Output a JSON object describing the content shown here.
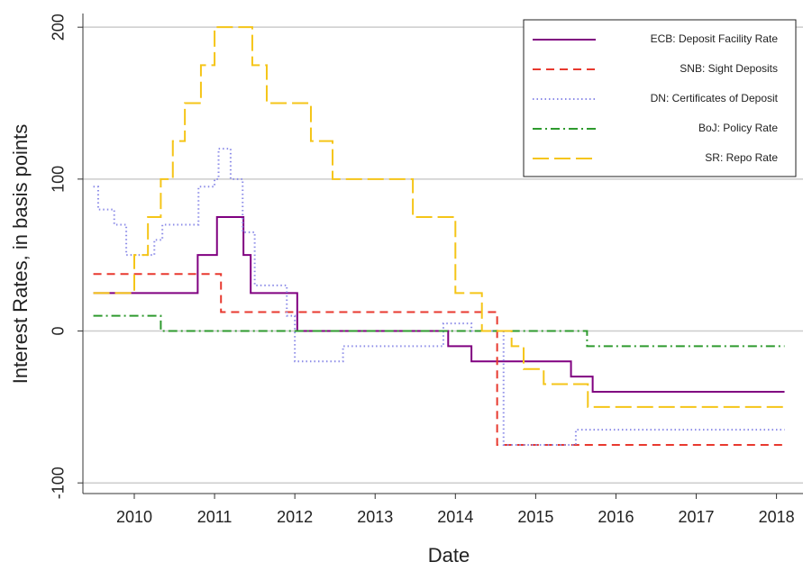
{
  "chart_data": {
    "type": "step",
    "x_label": "Date",
    "y_label": "Interest Rates, in basis points",
    "xlim": [
      2009.36,
      2018.33
    ],
    "xticks": [
      2010,
      2011,
      2012,
      2013,
      2014,
      2015,
      2016,
      2017,
      2018
    ],
    "ylim": [
      -107,
      209
    ],
    "yticks": [
      -100,
      0,
      100,
      200
    ],
    "grid": true,
    "legend": "upper right",
    "series": [
      {
        "name": "ECB: Deposit Facility Rate",
        "color": "#800080",
        "dash": "",
        "x": [
          2009.49,
          2010.79,
          2011.03,
          2011.36,
          2011.45,
          2012.03,
          2013.91,
          2014.2,
          2015.44,
          2015.71,
          2018.1
        ],
        "values": [
          25,
          50,
          75,
          50,
          25,
          0,
          -10,
          -20,
          -30,
          -40,
          -40
        ]
      },
      {
        "name": "SNB: Sight Deposits",
        "color": "#e8392f",
        "dash": "9,6",
        "x": [
          2009.49,
          2011.08,
          2014.52,
          2018.1
        ],
        "values": [
          37.5,
          12.5,
          -75,
          -75
        ]
      },
      {
        "name": "DN: Certificates of Deposit",
        "color": "#8c8ce8",
        "dash": "1.5,3",
        "x": [
          2009.49,
          2009.55,
          2009.75,
          2009.9,
          2010.25,
          2010.35,
          2010.8,
          2011.0,
          2011.05,
          2011.2,
          2011.35,
          2011.5,
          2011.9,
          2012.0,
          2012.6,
          2013.85,
          2014.2,
          2014.6,
          2015.5,
          2018.1
        ],
        "values": [
          95,
          80,
          70,
          50,
          60,
          70,
          95,
          100,
          120,
          100,
          65,
          30,
          10,
          -20,
          -10,
          5,
          0,
          -75,
          -65,
          -65
        ]
      },
      {
        "name": "BoJ: Policy Rate",
        "color": "#2e9a2e",
        "dash": "10,4,2,4",
        "x": [
          2009.49,
          2010.33,
          2015.64,
          2018.1
        ],
        "values": [
          10,
          0,
          -10,
          -10
        ]
      },
      {
        "name": "SR: Repo Rate",
        "color": "#f5c518",
        "dash": "18,6",
        "x": [
          2009.49,
          2010.0,
          2010.17,
          2010.33,
          2010.48,
          2010.63,
          2010.83,
          2011.0,
          2011.47,
          2011.65,
          2012.2,
          2012.47,
          2013.47,
          2014.0,
          2014.33,
          2014.7,
          2014.85,
          2015.1,
          2015.65,
          2018.1
        ],
        "values": [
          25,
          50,
          75,
          100,
          125,
          150,
          175,
          200,
          175,
          150,
          125,
          100,
          75,
          25,
          0,
          -10,
          -25,
          -35,
          -50,
          -50
        ]
      }
    ]
  }
}
